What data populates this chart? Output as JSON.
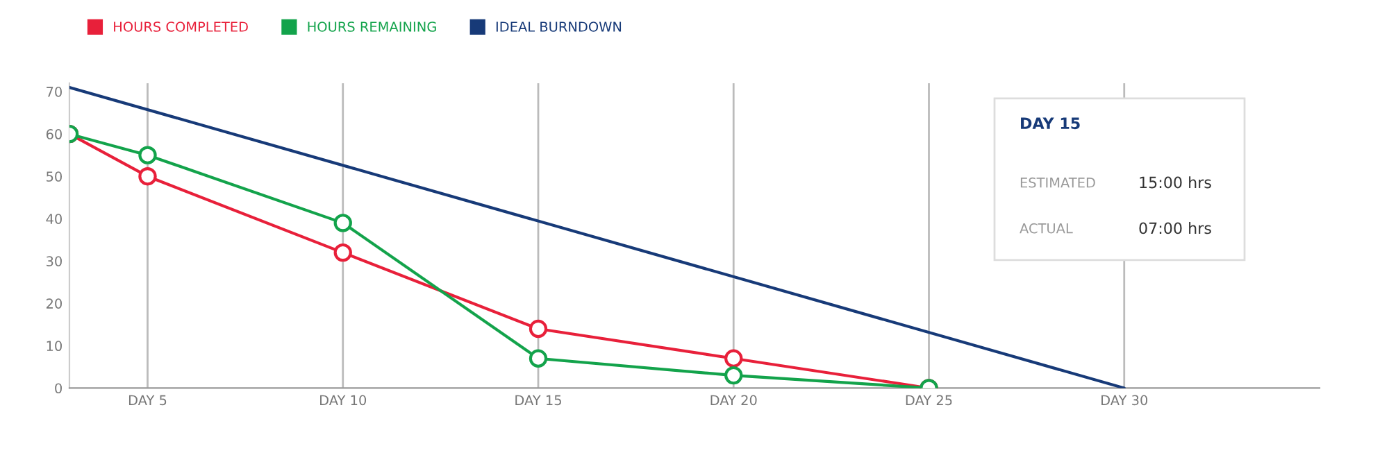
{
  "chart_data": {
    "type": "line",
    "categories": [
      null,
      null,
      "DAY 5",
      null,
      null,
      null,
      null,
      "DAY 10",
      null,
      null,
      null,
      null,
      "DAY 15",
      null,
      null,
      null,
      null,
      "DAY 20",
      null,
      null,
      null,
      null,
      "DAY 25",
      null,
      null,
      null,
      null,
      "DAY 30",
      null,
      null,
      null,
      null
    ],
    "series": [
      {
        "name": "HOURS COMPLETED",
        "color": "#e8203a",
        "values": [
          60,
          null,
          50,
          null,
          null,
          null,
          null,
          32,
          null,
          null,
          null,
          null,
          14,
          null,
          null,
          null,
          null,
          7,
          null,
          null,
          null,
          null,
          0,
          null,
          null,
          null,
          null,
          null,
          null,
          null,
          null,
          null
        ],
        "marker": "circle"
      },
      {
        "name": "HOURS REMAINING",
        "color": "#13a34b",
        "values": [
          60,
          null,
          55,
          null,
          null,
          null,
          null,
          39,
          null,
          null,
          null,
          null,
          7,
          null,
          null,
          null,
          null,
          3,
          null,
          null,
          null,
          null,
          0,
          null,
          null,
          null,
          null,
          null,
          null,
          null,
          null,
          null
        ],
        "marker": "circle"
      },
      {
        "name": "IDEAL BURNDOWN",
        "color": "#173a78",
        "values": [
          71,
          null,
          null,
          null,
          null,
          null,
          null,
          null,
          null,
          null,
          null,
          null,
          null,
          null,
          null,
          null,
          null,
          null,
          null,
          null,
          null,
          null,
          null,
          null,
          null,
          null,
          null,
          0,
          null,
          null,
          null,
          null
        ],
        "marker": "none"
      }
    ],
    "ylim": [
      0,
      72
    ],
    "yticks": [
      0,
      10,
      20,
      30,
      40,
      50,
      60,
      70
    ],
    "grid": "x",
    "legend": "top left",
    "annotations": [
      "DAY 15",
      "ESTIMATED",
      "15:00 hrs",
      "ACTUAL",
      "07:00 hrs"
    ]
  }
}
